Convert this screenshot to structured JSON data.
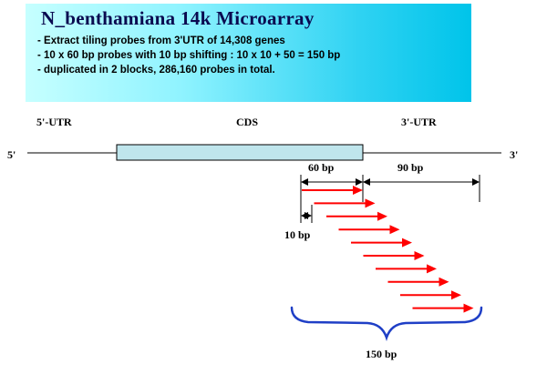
{
  "header": {
    "title": "N_benthamiana 14k Microarray",
    "bullets": [
      "- Extract tiling probes from 3'UTR of 14,308 genes",
      "- 10 x 60 bp probes with 10 bp shifting : 10 x 10 + 50 = 150 bp",
      "- duplicated in 2 blocks, 286,160 probes in total."
    ]
  },
  "diagram": {
    "labels": {
      "utr5": "5'-UTR",
      "cds": "CDS",
      "utr3": "3'-UTR",
      "end5": "5'",
      "end3": "3'",
      "len60": "60 bp",
      "len90": "90 bp",
      "len10": "10 bp",
      "len150": "150 bp"
    },
    "probe_count": 10,
    "colors": {
      "background": "#ffffff",
      "header_gradient_start": "#c6ffff",
      "header_gradient_end": "#00c4ea",
      "cds_fill": "#bfe5ec",
      "probe_arrow": "#ff0000",
      "brace": "#1f3fc6",
      "lines": "#000000"
    }
  }
}
